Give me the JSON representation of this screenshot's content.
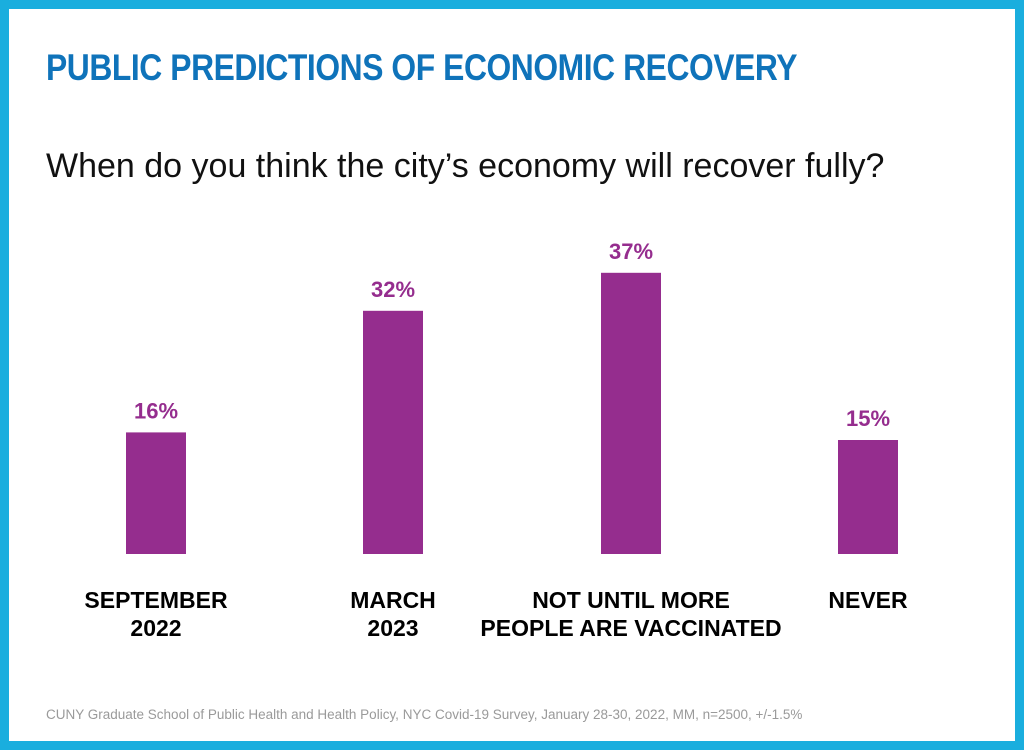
{
  "title": "PUBLIC PREDICTIONS OF ECONOMIC RECOVERY",
  "subtitle": "When do you think the city’s economy will recover fully?",
  "source": "CUNY Graduate School of Public Health and Health Policy, NYC Covid-19 Survey, January 28-30, 2022, MM, n=2500, +/-1.5%",
  "colors": {
    "border": "#1aaede",
    "title": "#0f73ba",
    "bar": "#952d8e",
    "value_label": "#952d8e"
  },
  "chart_data": {
    "type": "bar",
    "categories": [
      [
        "SEPTEMBER",
        "2022"
      ],
      [
        "MARCH",
        "2023"
      ],
      [
        "NOT UNTIL MORE",
        "PEOPLE ARE VACCINATED"
      ],
      [
        "NEVER"
      ]
    ],
    "values": [
      16,
      32,
      37,
      15
    ],
    "value_labels": [
      "16%",
      "32%",
      "37%",
      "15%"
    ],
    "title": "PUBLIC PREDICTIONS OF ECONOMIC RECOVERY",
    "subtitle": "When do you think the city’s economy will recover fully?",
    "xlabel": "",
    "ylabel": "",
    "unit": "%",
    "grid": false,
    "legend": "none"
  }
}
